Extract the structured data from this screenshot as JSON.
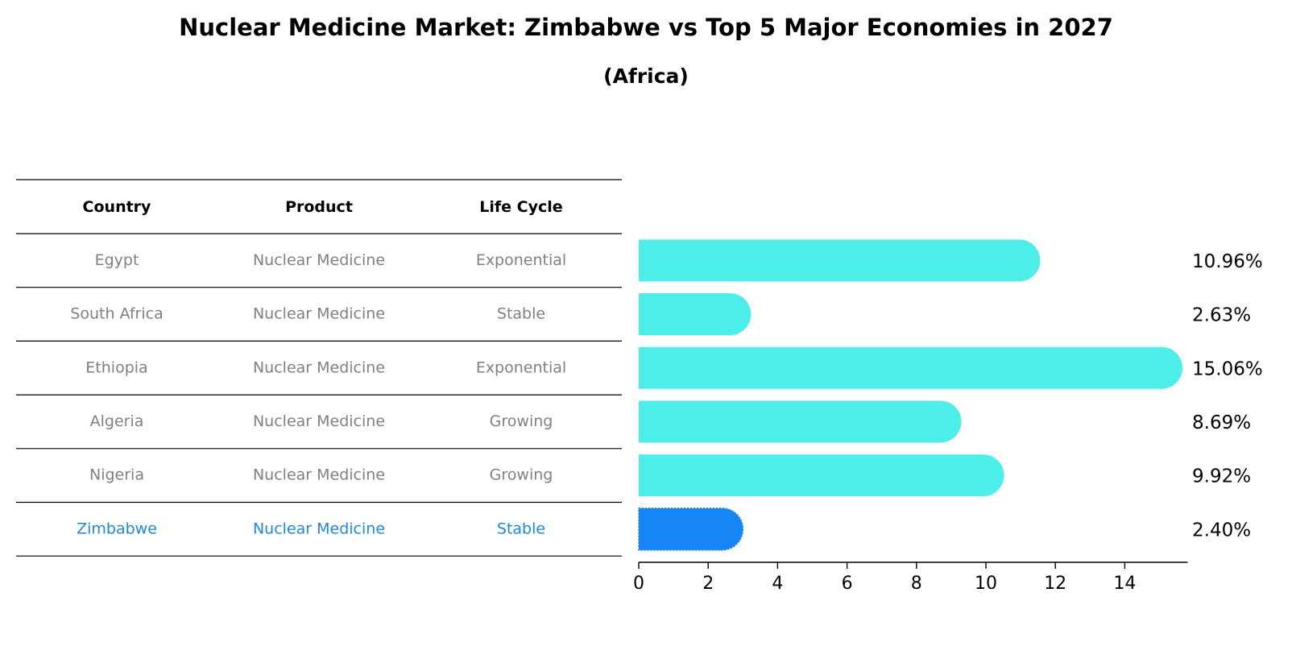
{
  "chart_data": {
    "type": "bar",
    "orientation": "horizontal",
    "title": "Nuclear Medicine Market: Zimbabwe vs Top 5 Major Economies in 2027",
    "subtitle": "(Africa)",
    "table": {
      "headers": [
        "Country",
        "Product",
        "Life Cycle"
      ],
      "rows": [
        {
          "country": "Egypt",
          "product": "Nuclear Medicine",
          "life_cycle": "Exponential",
          "highlight": false
        },
        {
          "country": "South Africa",
          "product": "Nuclear Medicine",
          "life_cycle": "Stable",
          "highlight": false
        },
        {
          "country": "Ethiopia",
          "product": "Nuclear Medicine",
          "life_cycle": "Exponential",
          "highlight": false
        },
        {
          "country": "Algeria",
          "product": "Nuclear Medicine",
          "life_cycle": "Growing",
          "highlight": false
        },
        {
          "country": "Nigeria",
          "product": "Nuclear Medicine",
          "life_cycle": "Growing",
          "highlight": false
        },
        {
          "country": "Zimbabwe",
          "product": "Nuclear Medicine",
          "life_cycle": "Stable",
          "highlight": true
        }
      ]
    },
    "categories": [
      "Egypt",
      "South Africa",
      "Ethiopia",
      "Algeria",
      "Nigeria",
      "Zimbabwe"
    ],
    "values": [
      10.96,
      2.63,
      15.06,
      8.69,
      9.92,
      2.4
    ],
    "value_labels": [
      "10.96%",
      "2.63%",
      "15.06%",
      "8.69%",
      "9.92%",
      "2.40%"
    ],
    "xlim": [
      0,
      15.81
    ],
    "xticks": [
      0,
      2,
      4,
      6,
      8,
      10,
      12,
      14
    ],
    "xtick_labels": [
      "0",
      "2",
      "4",
      "6",
      "8",
      "10",
      "12",
      "14"
    ],
    "grid": false,
    "colors": {
      "bar": "#4deeea",
      "highlight_bar": "#1685f8",
      "text_muted": "#808080",
      "text_highlight": "#2088d8",
      "axis": "#000000"
    }
  }
}
